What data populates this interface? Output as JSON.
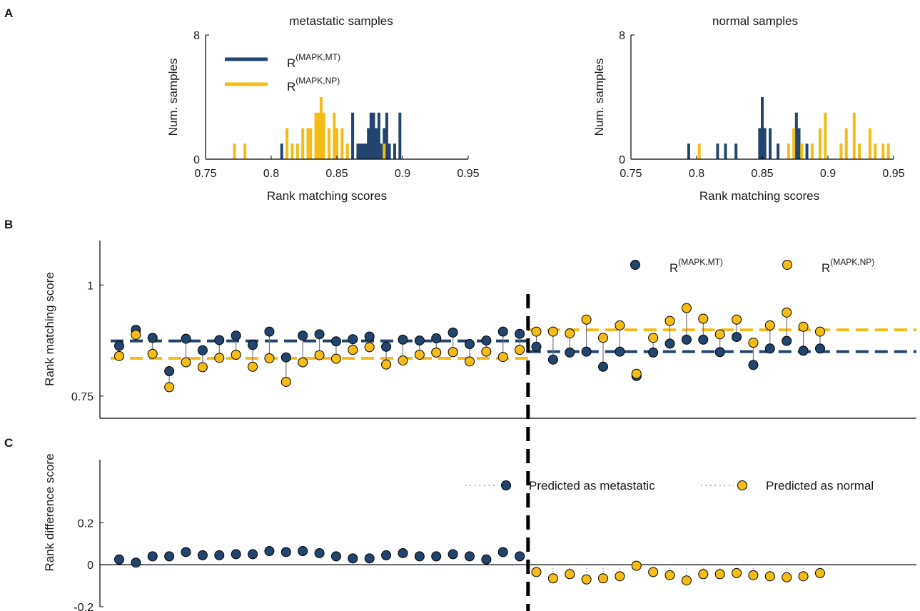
{
  "colors": {
    "mt": "#21456f",
    "np": "#f4bc14",
    "axis": "#000000",
    "stem": "#777777"
  },
  "panelA": {
    "letter": "A",
    "xlabel": "Rank matching scores",
    "ylabel": "Num. samples",
    "legend_mt_base": "R",
    "legend_mt_sup": "(MAPK,MT)",
    "legend_np_base": "R",
    "legend_np_sup": "(MAPK,NP)"
  },
  "panelB": {
    "letter": "B",
    "ylabel": "Rank matching score",
    "legend_mt_base": "R",
    "legend_mt_sup": "(MAPK,MT)",
    "legend_np_base": "R",
    "legend_np_sup": "(MAPK,NP)"
  },
  "panelC": {
    "letter": "C",
    "ylabel": "Rank difference score",
    "legend_mt": "Predicted as metastatic",
    "legend_np": "Predicted as normal"
  },
  "chart_data": [
    {
      "type": "bar",
      "title": "metastatic samples",
      "xlabel": "Rank matching scores",
      "ylabel": "Num. samples",
      "xlim": [
        0.75,
        0.95
      ],
      "ylim": [
        0,
        8
      ],
      "xticks": [
        "0.75",
        "0.8",
        "0.85",
        "0.9",
        "0.95"
      ],
      "yticks": [
        "0",
        "8"
      ],
      "series": [
        {
          "name": "R(MAPK,MT)",
          "x": [
            0.808,
            0.862,
            0.866,
            0.868,
            0.87,
            0.872,
            0.874,
            0.876,
            0.878,
            0.88,
            0.882,
            0.884,
            0.886,
            0.888,
            0.89,
            0.894,
            0.898
          ],
          "values": [
            1,
            3,
            1,
            1,
            1,
            1,
            2,
            3,
            3,
            2,
            3,
            1,
            2,
            3,
            1,
            1,
            3
          ]
        },
        {
          "name": "R(MAPK,NP)",
          "x": [
            0.772,
            0.78,
            0.812,
            0.816,
            0.82,
            0.824,
            0.828,
            0.83,
            0.834,
            0.836,
            0.838,
            0.84,
            0.844,
            0.848,
            0.85,
            0.854,
            0.858,
            0.886
          ],
          "values": [
            1,
            1,
            2,
            1,
            1,
            2,
            2,
            2,
            3,
            3,
            4,
            3,
            2,
            3,
            2,
            2,
            1,
            1
          ]
        }
      ]
    },
    {
      "type": "bar",
      "title": "normal samples",
      "xlabel": "Rank matching scores",
      "ylabel": "Num. samples",
      "xlim": [
        0.75,
        0.95
      ],
      "ylim": [
        0,
        8
      ],
      "xticks": [
        "0.75",
        "0.8",
        "0.85",
        "0.9",
        "0.95"
      ],
      "yticks": [
        "0",
        "8"
      ],
      "series": [
        {
          "name": "R(MAPK,MT)",
          "x": [
            0.794,
            0.816,
            0.822,
            0.83,
            0.848,
            0.85,
            0.852,
            0.856,
            0.862,
            0.876,
            0.878,
            0.884
          ],
          "values": [
            1,
            1,
            1,
            1,
            2,
            4,
            2,
            2,
            1,
            3,
            2,
            1
          ]
        },
        {
          "name": "R(MAPK,NP)",
          "x": [
            0.802,
            0.87,
            0.874,
            0.88,
            0.888,
            0.894,
            0.898,
            0.91,
            0.914,
            0.92,
            0.924,
            0.932,
            0.936,
            0.942,
            0.946
          ],
          "values": [
            1,
            1,
            2,
            1,
            1,
            2,
            3,
            1,
            2,
            3,
            1,
            2,
            1,
            1,
            1
          ]
        }
      ]
    },
    {
      "type": "scatter",
      "ylabel": "Rank matching score",
      "ylim": [
        0.7,
        1.1
      ],
      "yticks": [
        "0.75",
        "1"
      ],
      "divider_after_sample": 25,
      "mean_lines": {
        "mt_left": 0.874,
        "np_left": 0.835,
        "mt_right": 0.85,
        "np_right": 0.899
      },
      "series": [
        {
          "name": "R(MAPK,MT)",
          "values": [
            0.863,
            0.899,
            0.881,
            0.806,
            0.879,
            0.853,
            0.876,
            0.886,
            0.865,
            0.895,
            0.837,
            0.886,
            0.889,
            0.873,
            0.878,
            0.884,
            0.861,
            0.877,
            0.875,
            0.88,
            0.893,
            0.867,
            0.875,
            0.895,
            0.89,
            0.861,
            0.832,
            0.848,
            0.85,
            0.816,
            0.85,
            0.795,
            0.848,
            0.868,
            0.877,
            0.877,
            0.849,
            0.883,
            0.82,
            0.857,
            0.874,
            0.852,
            0.857
          ]
        },
        {
          "name": "R(MAPK,NP)",
          "values": [
            0.84,
            0.888,
            0.845,
            0.77,
            0.826,
            0.815,
            0.836,
            0.843,
            0.816,
            0.835,
            0.782,
            0.826,
            0.842,
            0.834,
            0.854,
            0.86,
            0.821,
            0.83,
            0.843,
            0.848,
            0.849,
            0.828,
            0.85,
            0.838,
            0.854,
            0.895,
            0.895,
            0.891,
            0.922,
            0.881,
            0.909,
            0.8,
            0.881,
            0.919,
            0.948,
            0.924,
            0.889,
            0.922,
            0.87,
            0.909,
            0.938,
            0.906,
            0.895
          ]
        }
      ]
    },
    {
      "type": "scatter",
      "ylabel": "Rank difference score",
      "ylim": [
        -0.2,
        0.5
      ],
      "yticks": [
        "-0.2",
        "0",
        "0.2"
      ],
      "series": [
        {
          "name": "Predicted as metastatic",
          "values": [
            0.025,
            0.01,
            0.04,
            0.04,
            0.06,
            0.045,
            0.045,
            0.05,
            0.05,
            0.065,
            0.06,
            0.065,
            0.055,
            0.04,
            0.03,
            0.03,
            0.045,
            0.055,
            0.04,
            0.04,
            0.05,
            0.04,
            0.025,
            0.06,
            0.04
          ]
        },
        {
          "name": "Predicted as normal",
          "values": [
            -0.035,
            -0.065,
            -0.045,
            -0.07,
            -0.065,
            -0.055,
            -0.005,
            -0.035,
            -0.05,
            -0.075,
            -0.045,
            -0.045,
            -0.04,
            -0.05,
            -0.055,
            -0.06,
            -0.055,
            -0.04
          ]
        }
      ]
    }
  ]
}
